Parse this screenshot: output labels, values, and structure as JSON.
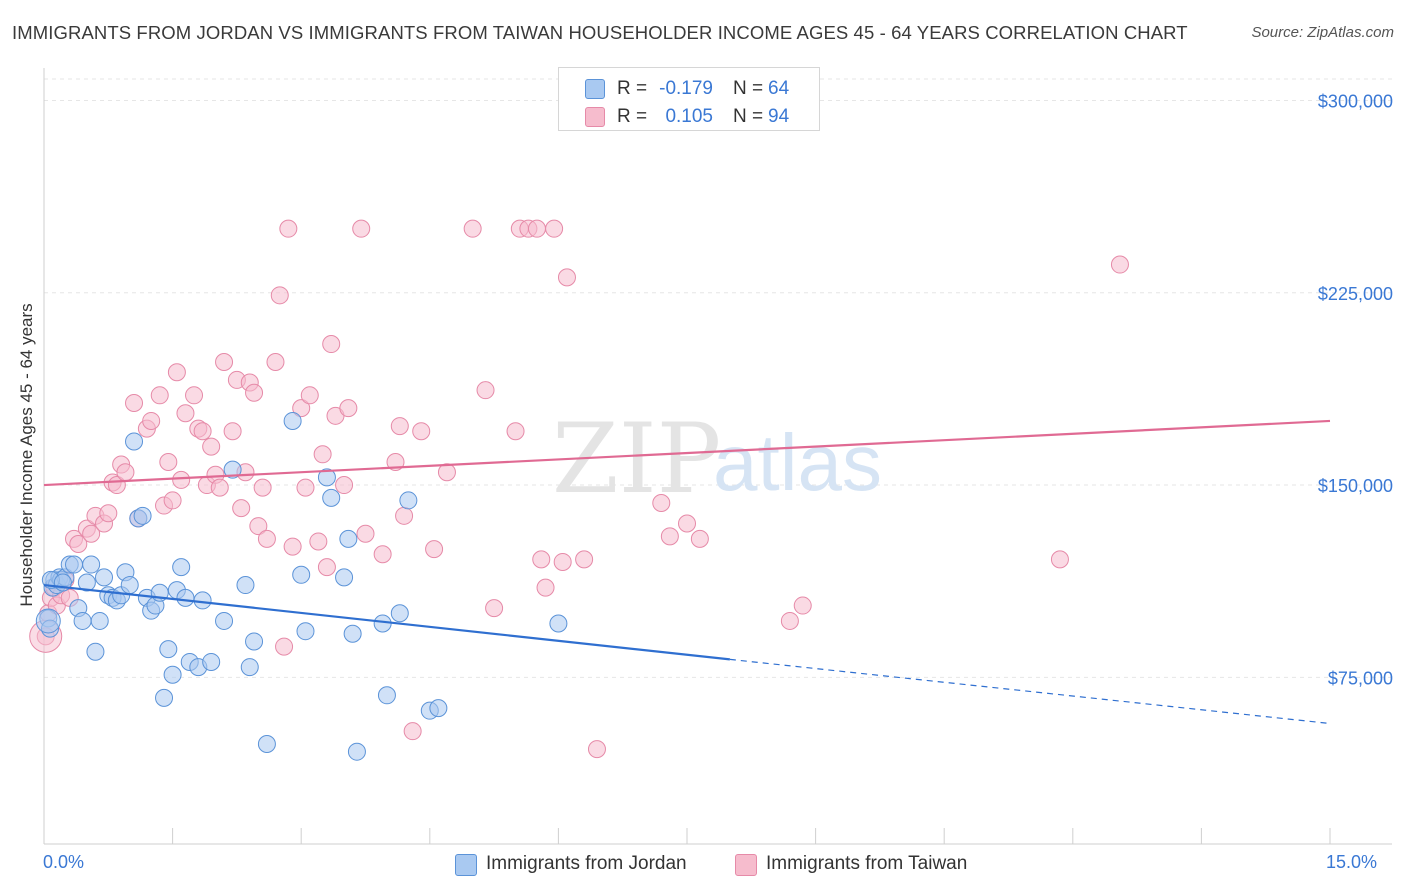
{
  "title": "IMMIGRANTS FROM JORDAN VS IMMIGRANTS FROM TAIWAN HOUSEHOLDER INCOME AGES 45 - 64 YEARS CORRELATION CHART",
  "source": "Source: ZipAtlas.com",
  "watermark": {
    "zip": "ZIP",
    "atlas": "atlas"
  },
  "legend": {
    "jordan": {
      "r_label": "R =",
      "r_value": "-0.179",
      "n_label": "N =",
      "n_value": "64"
    },
    "taiwan": {
      "r_label": "R =",
      "r_value": "0.105",
      "n_label": "N =",
      "n_value": "94"
    }
  },
  "colors": {
    "jordan_fill": "#a9c9f1",
    "jordan_stroke": "#5b93d8",
    "jordan_line": "#2f6fd0",
    "taiwan_fill": "#f6bccd",
    "taiwan_stroke": "#e68aa8",
    "taiwan_line": "#e06a93",
    "axis_text": "#3a78d4",
    "grid": "#e6e6e6"
  },
  "chart_data": {
    "type": "scatter",
    "title": "IMMIGRANTS FROM JORDAN VS IMMIGRANTS FROM TAIWAN HOUSEHOLDER INCOME AGES 45 - 64 YEARS CORRELATION CHART",
    "xlabel": "",
    "ylabel": "Householder Income Ages 45 - 64 years",
    "x_tick_labels": [
      "0.0%",
      "15.0%"
    ],
    "y_tick_labels": [
      "$75,000",
      "$150,000",
      "$225,000",
      "$300,000"
    ],
    "y_ticks": [
      75000,
      150000,
      225000,
      300000
    ],
    "xlim": [
      0,
      15
    ],
    "ylim": [
      10000,
      315000
    ],
    "grid": true,
    "legend_position": "top-center and bottom",
    "series": [
      {
        "name": "Immigrants from Jordan",
        "r": -0.179,
        "n": 64,
        "trend": {
          "x0": 0.0,
          "y0": 111000,
          "x1": 8.0,
          "y1": 82000,
          "dashed_to_x": 15.0,
          "dashed_to_y": 57000
        },
        "points": [
          [
            0.05,
            98000
          ],
          [
            0.07,
            94000
          ],
          [
            0.1,
            110000
          ],
          [
            0.12,
            113000
          ],
          [
            0.15,
            111000
          ],
          [
            0.18,
            114000
          ],
          [
            0.2,
            113000
          ],
          [
            0.25,
            114000
          ],
          [
            0.3,
            119000
          ],
          [
            0.35,
            119000
          ],
          [
            0.4,
            102000
          ],
          [
            0.45,
            97000
          ],
          [
            0.5,
            112000
          ],
          [
            0.55,
            119000
          ],
          [
            0.6,
            85000
          ],
          [
            0.65,
            97000
          ],
          [
            0.7,
            114000
          ],
          [
            0.75,
            107000
          ],
          [
            0.8,
            106000
          ],
          [
            0.85,
            105000
          ],
          [
            0.9,
            107000
          ],
          [
            0.95,
            116000
          ],
          [
            1.0,
            111000
          ],
          [
            1.05,
            167000
          ],
          [
            1.1,
            137000
          ],
          [
            1.15,
            138000
          ],
          [
            1.2,
            106000
          ],
          [
            1.25,
            101000
          ],
          [
            1.3,
            103000
          ],
          [
            1.35,
            108000
          ],
          [
            1.4,
            67000
          ],
          [
            1.45,
            86000
          ],
          [
            1.5,
            76000
          ],
          [
            1.55,
            109000
          ],
          [
            1.6,
            118000
          ],
          [
            1.65,
            106000
          ],
          [
            1.7,
            81000
          ],
          [
            1.8,
            79000
          ],
          [
            1.85,
            105000
          ],
          [
            1.95,
            81000
          ],
          [
            2.1,
            97000
          ],
          [
            2.2,
            156000
          ],
          [
            2.35,
            111000
          ],
          [
            2.4,
            79000
          ],
          [
            2.45,
            89000
          ],
          [
            2.6,
            49000
          ],
          [
            2.9,
            175000
          ],
          [
            3.0,
            115000
          ],
          [
            3.05,
            93000
          ],
          [
            3.3,
            153000
          ],
          [
            3.35,
            145000
          ],
          [
            3.5,
            114000
          ],
          [
            3.55,
            129000
          ],
          [
            3.6,
            92000
          ],
          [
            3.65,
            46000
          ],
          [
            3.95,
            96000
          ],
          [
            4.0,
            68000
          ],
          [
            4.15,
            100000
          ],
          [
            4.25,
            144000
          ],
          [
            4.5,
            62000
          ],
          [
            4.6,
            63000
          ],
          [
            6.0,
            96000
          ],
          [
            0.08,
            113000
          ],
          [
            0.22,
            112000
          ]
        ]
      },
      {
        "name": "Immigrants from Taiwan",
        "r": 0.105,
        "n": 94,
        "trend": {
          "x0": 0.0,
          "y0": 150000,
          "x1": 15.0,
          "y1": 175000
        },
        "points": [
          [
            0.02,
            91000
          ],
          [
            0.05,
            100000
          ],
          [
            0.08,
            106000
          ],
          [
            0.12,
            110000
          ],
          [
            0.15,
            103000
          ],
          [
            0.2,
            107000
          ],
          [
            0.25,
            113000
          ],
          [
            0.3,
            106000
          ],
          [
            0.35,
            129000
          ],
          [
            0.4,
            127000
          ],
          [
            0.5,
            133000
          ],
          [
            0.55,
            131000
          ],
          [
            0.6,
            138000
          ],
          [
            0.7,
            135000
          ],
          [
            0.75,
            139000
          ],
          [
            0.8,
            151000
          ],
          [
            0.85,
            150000
          ],
          [
            0.9,
            158000
          ],
          [
            0.95,
            155000
          ],
          [
            1.05,
            182000
          ],
          [
            1.1,
            137000
          ],
          [
            1.2,
            172000
          ],
          [
            1.25,
            175000
          ],
          [
            1.35,
            185000
          ],
          [
            1.4,
            142000
          ],
          [
            1.45,
            159000
          ],
          [
            1.5,
            144000
          ],
          [
            1.55,
            194000
          ],
          [
            1.6,
            152000
          ],
          [
            1.65,
            178000
          ],
          [
            1.75,
            185000
          ],
          [
            1.8,
            172000
          ],
          [
            1.85,
            171000
          ],
          [
            1.9,
            150000
          ],
          [
            1.95,
            165000
          ],
          [
            2.0,
            154000
          ],
          [
            2.05,
            149000
          ],
          [
            2.1,
            198000
          ],
          [
            2.2,
            171000
          ],
          [
            2.25,
            191000
          ],
          [
            2.3,
            141000
          ],
          [
            2.35,
            155000
          ],
          [
            2.4,
            190000
          ],
          [
            2.45,
            186000
          ],
          [
            2.5,
            134000
          ],
          [
            2.55,
            149000
          ],
          [
            2.6,
            129000
          ],
          [
            2.7,
            198000
          ],
          [
            2.75,
            224000
          ],
          [
            2.8,
            87000
          ],
          [
            2.85,
            250000
          ],
          [
            2.9,
            126000
          ],
          [
            3.0,
            180000
          ],
          [
            3.05,
            149000
          ],
          [
            3.1,
            185000
          ],
          [
            3.2,
            128000
          ],
          [
            3.25,
            162000
          ],
          [
            3.3,
            118000
          ],
          [
            3.35,
            205000
          ],
          [
            3.4,
            177000
          ],
          [
            3.5,
            150000
          ],
          [
            3.55,
            180000
          ],
          [
            3.7,
            250000
          ],
          [
            3.75,
            131000
          ],
          [
            3.95,
            123000
          ],
          [
            4.1,
            159000
          ],
          [
            4.15,
            173000
          ],
          [
            4.2,
            138000
          ],
          [
            4.3,
            54000
          ],
          [
            4.4,
            171000
          ],
          [
            4.55,
            125000
          ],
          [
            4.7,
            155000
          ],
          [
            5.0,
            250000
          ],
          [
            5.15,
            187000
          ],
          [
            5.25,
            102000
          ],
          [
            5.5,
            171000
          ],
          [
            5.55,
            250000
          ],
          [
            5.65,
            250000
          ],
          [
            5.75,
            250000
          ],
          [
            5.8,
            121000
          ],
          [
            5.85,
            110000
          ],
          [
            5.95,
            250000
          ],
          [
            6.05,
            120000
          ],
          [
            6.1,
            231000
          ],
          [
            6.3,
            121000
          ],
          [
            6.45,
            47000
          ],
          [
            7.2,
            143000
          ],
          [
            7.3,
            130000
          ],
          [
            7.5,
            135000
          ],
          [
            7.65,
            129000
          ],
          [
            8.7,
            97000
          ],
          [
            8.85,
            103000
          ],
          [
            11.85,
            121000
          ],
          [
            12.55,
            236000
          ]
        ]
      }
    ]
  }
}
